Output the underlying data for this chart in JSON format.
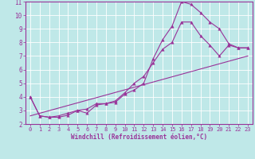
{
  "xlabel": "Windchill (Refroidissement éolien,°C)",
  "xlim": [
    -0.5,
    23.5
  ],
  "ylim": [
    2,
    11
  ],
  "xticks": [
    0,
    1,
    2,
    3,
    4,
    5,
    6,
    7,
    8,
    9,
    10,
    11,
    12,
    13,
    14,
    15,
    16,
    17,
    18,
    19,
    20,
    21,
    22,
    23
  ],
  "yticks": [
    2,
    3,
    4,
    5,
    6,
    7,
    8,
    9,
    10,
    11
  ],
  "bg_color": "#bfe8e8",
  "line_color": "#993399",
  "line1_x": [
    0,
    1,
    2,
    3,
    4,
    5,
    6,
    7,
    8,
    9,
    10,
    11,
    12,
    13,
    14,
    15,
    16,
    17,
    18,
    19,
    20,
    21,
    22,
    23
  ],
  "line1_y": [
    4.0,
    2.6,
    2.5,
    2.5,
    2.65,
    3.0,
    3.1,
    3.5,
    3.5,
    3.6,
    4.2,
    4.5,
    5.0,
    6.8,
    8.2,
    9.2,
    11.0,
    10.8,
    10.2,
    9.5,
    9.0,
    7.9,
    7.6,
    7.6
  ],
  "line2_x": [
    0,
    1,
    2,
    3,
    4,
    5,
    6,
    7,
    8,
    9,
    10,
    11,
    12,
    13,
    14,
    15,
    16,
    17,
    18,
    19,
    20,
    21,
    22,
    23
  ],
  "line2_y": [
    4.0,
    2.6,
    2.5,
    2.6,
    2.8,
    3.0,
    2.8,
    3.4,
    3.5,
    3.7,
    4.3,
    5.0,
    5.5,
    6.5,
    7.5,
    8.0,
    9.5,
    9.5,
    8.5,
    7.8,
    7.0,
    7.8,
    7.6,
    7.6
  ],
  "line3_x": [
    0,
    23
  ],
  "line3_y": [
    2.6,
    7.0
  ],
  "xlabel_fontsize": 5.5,
  "tick_fontsize": 5.0,
  "ytick_fontsize": 5.5
}
